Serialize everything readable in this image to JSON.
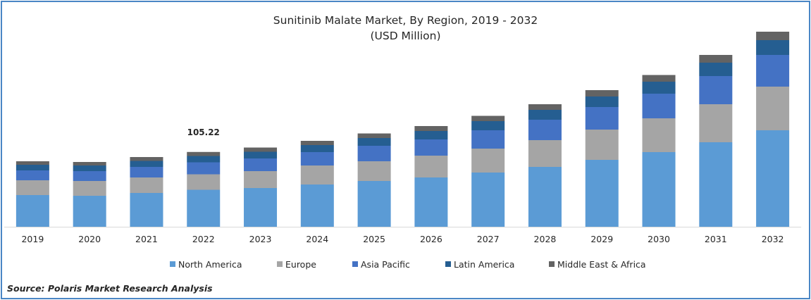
{
  "chart_data": {
    "type": "bar",
    "stacked": true,
    "title": "Sunitinib Malate Market, By Region, 2019 - 2032",
    "subtitle": "(USD Million)",
    "xlabel": "",
    "ylabel": "",
    "grid": false,
    "legend_position": "bottom",
    "categories": [
      "2019",
      "2020",
      "2021",
      "2022",
      "2023",
      "2024",
      "2025",
      "2026",
      "2027",
      "2028",
      "2029",
      "2030",
      "2031",
      "2032"
    ],
    "ylim": [
      0,
      300
    ],
    "series": [
      {
        "name": "North America",
        "color": "#5b9bd5",
        "values": [
          45,
          44,
          48,
          52.5,
          55,
          60,
          65,
          70,
          77,
          85,
          95,
          106,
          120,
          137
        ]
      },
      {
        "name": "Europe",
        "color": "#a5a5a5",
        "values": [
          21,
          21,
          22,
          22,
          24,
          27,
          28,
          31,
          34,
          38,
          43,
          48,
          54,
          62
        ]
      },
      {
        "name": "Asia Pacific",
        "color": "#4472c4",
        "values": [
          14,
          14,
          15,
          17,
          18,
          19,
          22,
          23,
          26,
          29,
          32,
          35,
          40,
          45
        ]
      },
      {
        "name": "Latin America",
        "color": "#255e91",
        "values": [
          8,
          8,
          8.5,
          9,
          9.5,
          10,
          11,
          12,
          13,
          14,
          15,
          17,
          19,
          21
        ]
      },
      {
        "name": "Middle East & Africa",
        "color": "#636363",
        "values": [
          5,
          5,
          5.5,
          5.72,
          6,
          6,
          6.5,
          7,
          7.5,
          8,
          9,
          9.5,
          11,
          12
        ]
      }
    ],
    "annotations": [
      {
        "category": "2022",
        "text": "105.22"
      }
    ]
  },
  "source": "Source: Polaris  Market Research Analysis"
}
